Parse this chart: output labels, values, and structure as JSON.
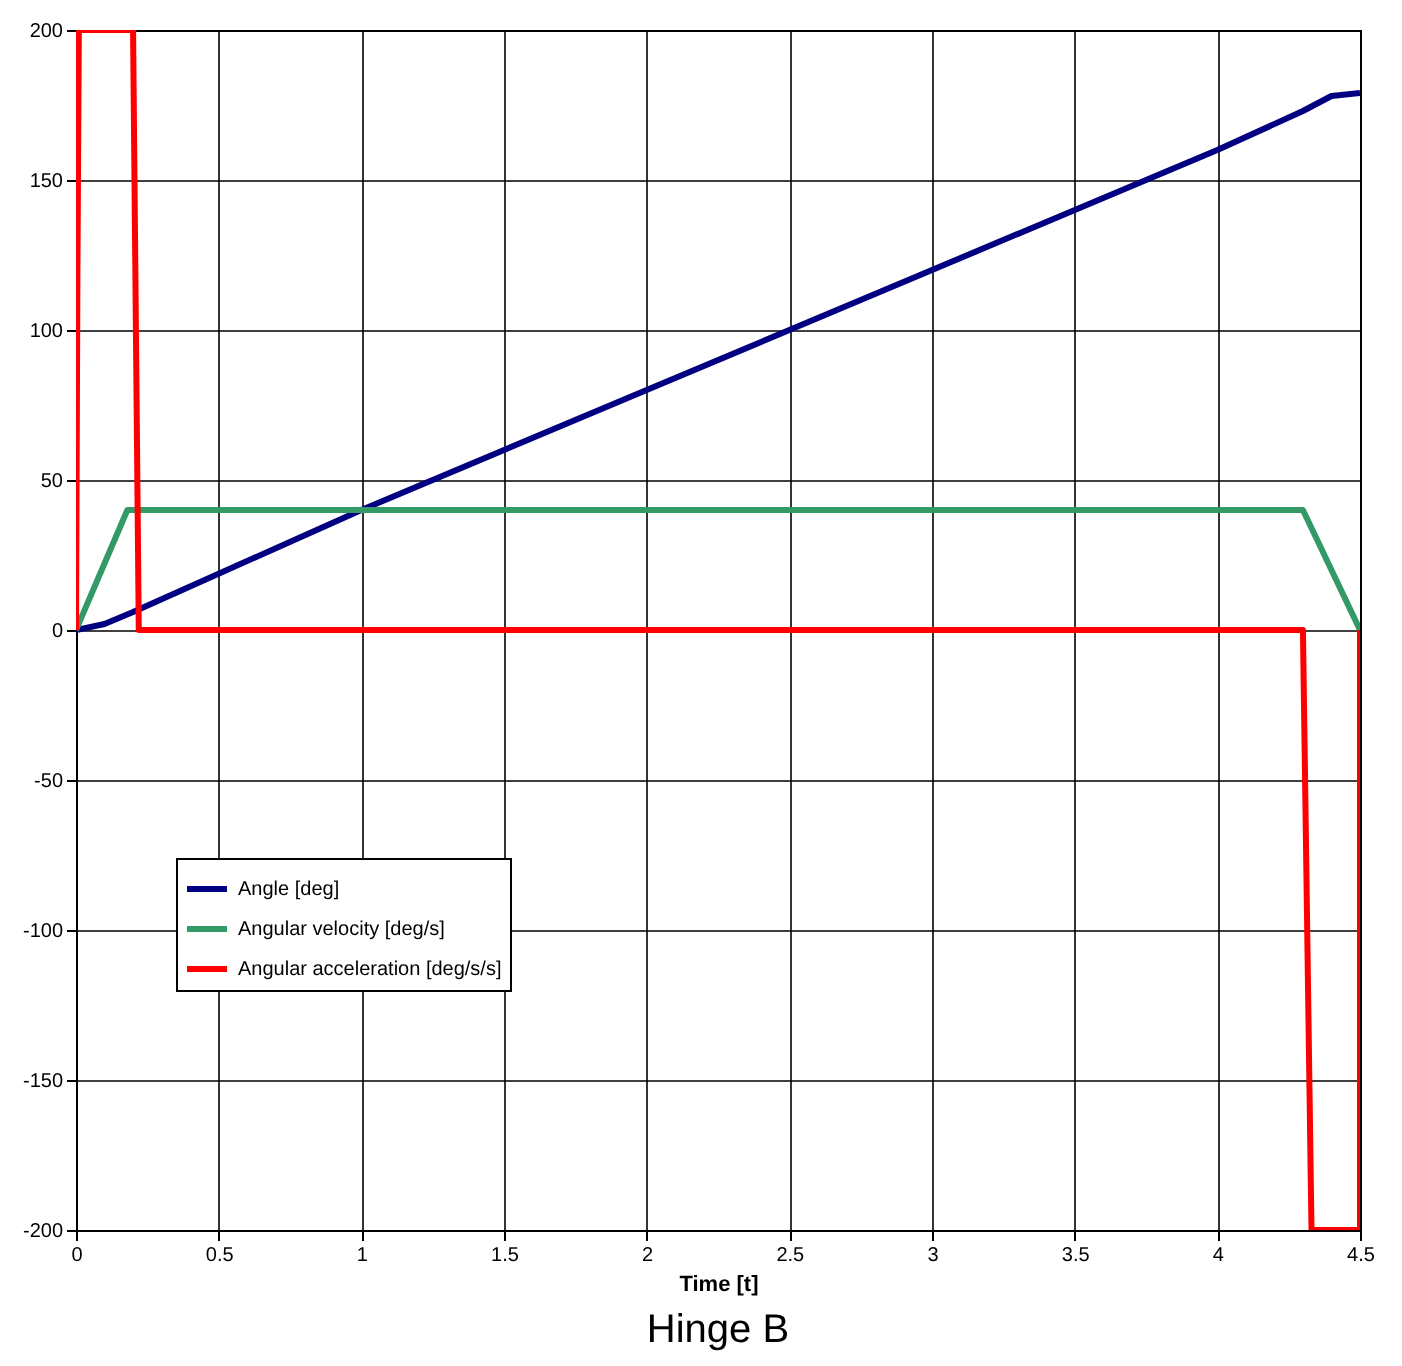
{
  "chart_data": {
    "type": "line",
    "title": "Hinge B",
    "xlabel": "Time [t]",
    "xlim": [
      0,
      4.5
    ],
    "xticks": [
      0,
      0.5,
      1,
      1.5,
      2,
      2.5,
      3,
      3.5,
      4,
      4.5
    ],
    "ylim": [
      -200,
      200
    ],
    "yticks": [
      -200,
      -150,
      -100,
      -50,
      0,
      50,
      100,
      150,
      200
    ],
    "grid": true,
    "legend": "bottom left",
    "marker": "none",
    "line_style": "solid",
    "series": [
      {
        "name": "Angle [deg]",
        "color": "#000080",
        "x": [
          0,
          0.1,
          0.2,
          1,
          2,
          3,
          4,
          4.3,
          4.4,
          4.5
        ],
        "values": [
          0,
          2,
          6,
          40,
          80,
          120,
          160,
          173,
          178,
          179
        ]
      },
      {
        "name": "Angular velocity [deg/s]",
        "color": "#339966",
        "x": [
          0,
          0.18,
          4.3,
          4.5
        ],
        "values": [
          0,
          40,
          40,
          0
        ]
      },
      {
        "name": "Angular acceleration [deg/s/s]",
        "color": "#ff0000",
        "x": [
          0,
          0.005,
          0.01,
          0.2,
          0.22,
          4.3,
          4.33,
          4.5,
          4.5
        ],
        "values": [
          0,
          120,
          200,
          200,
          0,
          0,
          -200,
          -200,
          0
        ]
      }
    ]
  }
}
